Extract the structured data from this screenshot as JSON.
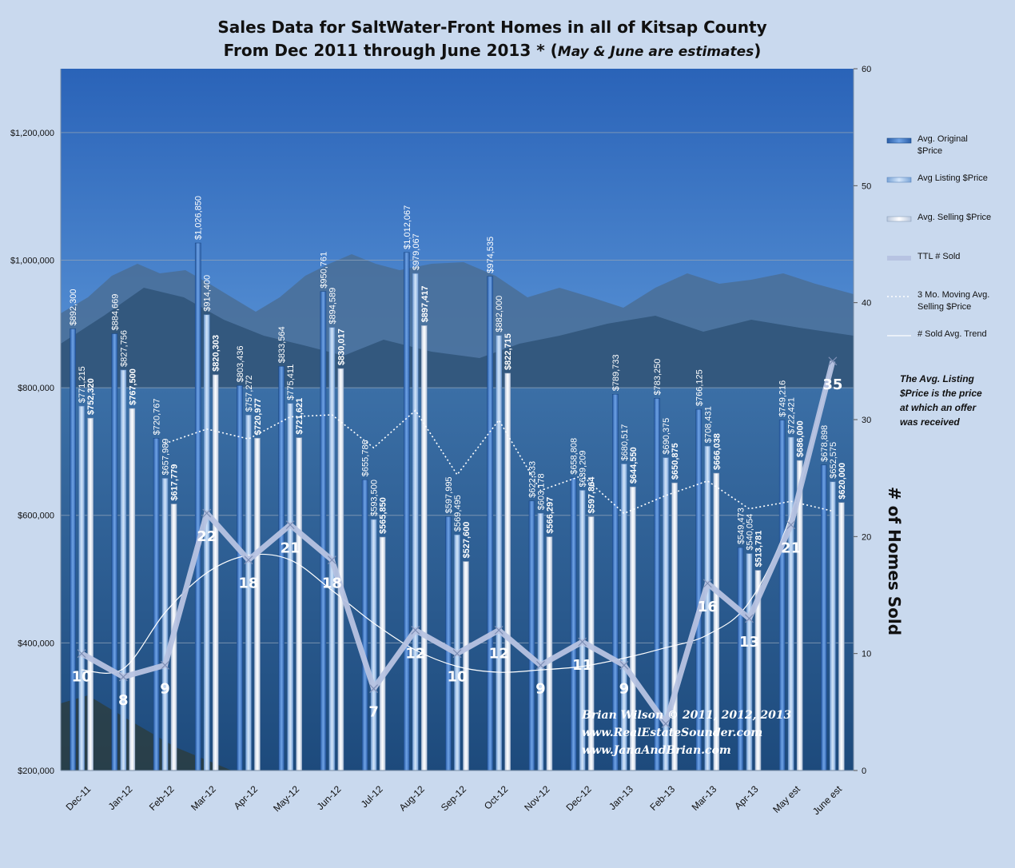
{
  "title_line1": "Sales Data for SaltWater-Front Homes in all of Kitsap County",
  "title_line2_main": "From Dec 2011 through June 2013 * (",
  "title_line2_italic": "May & June are estimates",
  "title_line2_end": ")",
  "y2_title": "# of Homes Sold",
  "note_lines": [
    "The Avg. Listing",
    "$Price is the price",
    "at which an offer",
    "was received"
  ],
  "signature_lines": [
    "Brian Wilson  © 2011, 2012, 2013",
    "www.RealEstateSounder.com",
    "www.JanaAndBrian.com"
  ],
  "legend": [
    {
      "label1": "Avg. Original",
      "label2": "$Price"
    },
    {
      "label1": "Avg Listing $Price",
      "label2": ""
    },
    {
      "label1": "Avg. Selling $Price",
      "label2": ""
    },
    {
      "label1": "TTL # Sold",
      "label2": ""
    },
    {
      "label1": "3 Mo. Moving Avg.",
      "label2": "Selling $Price"
    },
    {
      "label1": "# Sold Avg. Trend",
      "label2": ""
    }
  ],
  "colors": {
    "background": "#c9d9ee",
    "sky_top": "#2a63b8",
    "sky_horizon": "#9cc4ea",
    "water": "#24578f",
    "bar_original": "#3d78c9",
    "bar_listing": "#9ec2ea",
    "bar_selling": "#e6edf7",
    "sold_line": "#b7c3e2"
  },
  "chart_data": {
    "type": "bar",
    "categories": [
      "Dec-11",
      "Jan-12",
      "Feb-12",
      "Mar-12",
      "Apr-12",
      "May-12",
      "Jun-12",
      "Jul-12",
      "Aug-12",
      "Sep-12",
      "Oct-12",
      "Nov-12",
      "Dec-12",
      "Jan-13",
      "Feb-13",
      "Mar-13",
      "Apr-13",
      "May est",
      "June est"
    ],
    "series": [
      {
        "name": "Avg. Original $Price",
        "values": [
          892300,
          884669,
          720767,
          1026850,
          803436,
          833564,
          950761,
          655786,
          1012067,
          597995,
          974535,
          622533,
          658808,
          789733,
          783250,
          766125,
          549473,
          749216,
          678898
        ],
        "labels": [
          "$892,300",
          "$884,669",
          "$720,767",
          "$1,026,850",
          "$803,436",
          "$833,564",
          "$950,761",
          "$655,786",
          "$1,012,067",
          "$597,995",
          "$974,535",
          "$622,533",
          "$658,808",
          "$789,733",
          "$783,250",
          "$766,125",
          "$549,473",
          "$749,216",
          "$678,898"
        ]
      },
      {
        "name": "Avg Listing $Price",
        "values": [
          771215,
          827756,
          657989,
          914400,
          757272,
          775411,
          894589,
          593500,
          979067,
          569495,
          882000,
          603178,
          639209,
          680517,
          690375,
          708431,
          540054,
          722421,
          652575
        ],
        "labels": [
          "$771,215",
          "$827,756",
          "$657,989",
          "$914,400",
          "$757,272",
          "$775,411",
          "$894,589",
          "$593,500",
          "$979,067",
          "$569,495",
          "$882,000",
          "$603,178",
          "$639,209",
          "$680,517",
          "$690,375",
          "$708,431",
          "$540,054",
          "$722,421",
          "$652,575"
        ]
      },
      {
        "name": "Avg. Selling $Price",
        "values": [
          752320,
          767500,
          617779,
          820303,
          720977,
          721621,
          830017,
          565850,
          897417,
          527600,
          822715,
          566297,
          597864,
          644550,
          650875,
          666038,
          513781,
          686000,
          620000
        ],
        "labels": [
          "$752,320",
          "$767,500",
          "$617,779",
          "$820,303",
          "$720,977",
          "$721,621",
          "$830,017",
          "$565,850",
          "$897,417",
          "$527,600",
          "$822,715",
          "$566,297",
          "$597,864",
          "$644,550",
          "$650,875",
          "$666,038",
          "$513,781",
          "$686,000",
          "$620,000"
        ]
      },
      {
        "name": "TTL # Sold",
        "axis": "right",
        "values": [
          10,
          8,
          9,
          22,
          18,
          21,
          18,
          7,
          12,
          10,
          12,
          9,
          11,
          9,
          4,
          16,
          13,
          21,
          35
        ],
        "labels": [
          "10",
          "8",
          "9",
          "22",
          "18",
          "21",
          "18",
          "7",
          "12",
          "10",
          "12",
          "9",
          "11",
          "9",
          "",
          "16",
          "13",
          "21",
          "35"
        ]
      },
      {
        "name": "3 Mo. Moving Avg. Selling $Price",
        "values": [
          null,
          null,
          712533,
          735194,
          719686,
          754300,
          757538,
          705829,
          764428,
          663622,
          749244,
          638871,
          662292,
          602904,
          631096,
          653821,
          610231,
          621940,
          606594
        ]
      },
      {
        "name": "# Sold Avg. Trend",
        "axis": "right",
        "values": [
          8.6,
          8.7,
          13.5,
          16.9,
          18.4,
          18.0,
          15.4,
          12.6,
          10.3,
          8.9,
          8.4,
          8.6,
          8.9,
          9.6,
          10.5,
          11.6,
          14.4,
          21.9,
          35.0
        ]
      }
    ],
    "y_ticks": [
      "$200,000",
      "$400,000",
      "$600,000",
      "$800,000",
      "$1,000,000",
      "$1,200,000"
    ],
    "y2_ticks": [
      "0",
      "10",
      "20",
      "30",
      "40",
      "50",
      "60"
    ],
    "ylim": [
      200000,
      1300000
    ],
    "y2lim": [
      0,
      60
    ],
    "ylabel": "",
    "y2label": "# of Homes Sold",
    "grid": true,
    "legend_position": "right"
  }
}
